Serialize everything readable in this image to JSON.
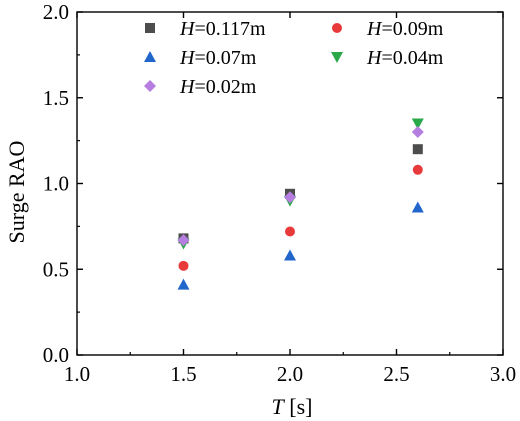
{
  "chart_data": {
    "type": "scatter",
    "xlabel_var": "T",
    "xlabel_unit": " [s]",
    "ylabel": "Surge RAO",
    "xlim": [
      1.0,
      3.0
    ],
    "ylim": [
      0.0,
      2.0
    ],
    "x_ticks": [
      "1.0",
      "1.5",
      "2.0",
      "2.5",
      "3.0"
    ],
    "y_ticks": [
      "0.0",
      "0.5",
      "1.0",
      "1.5",
      "2.0"
    ],
    "grid": false,
    "legend_placement": "top-left",
    "series": [
      {
        "var": "H",
        "value": "=0.117m",
        "marker": "square",
        "color": "#4d4d4d",
        "x": [
          1.5,
          2.0,
          2.6
        ],
        "y": [
          0.68,
          0.94,
          1.2
        ]
      },
      {
        "var": "H",
        "value": "=0.09m",
        "marker": "circle",
        "color": "#e8393b",
        "x": [
          1.5,
          2.0,
          2.6
        ],
        "y": [
          0.52,
          0.72,
          1.08
        ]
      },
      {
        "var": "H",
        "value": "=0.07m",
        "marker": "triangle-up",
        "color": "#2266cc",
        "x": [
          1.5,
          2.0,
          2.6
        ],
        "y": [
          0.41,
          0.58,
          0.86
        ]
      },
      {
        "var": "H",
        "value": "=0.04m",
        "marker": "triangle-down",
        "color": "#2aa84a",
        "x": [
          1.5,
          2.0,
          2.6
        ],
        "y": [
          0.65,
          0.9,
          1.35
        ]
      },
      {
        "var": "H",
        "value": "=0.02m",
        "marker": "diamond",
        "color": "#b57ee0",
        "x": [
          1.5,
          2.0,
          2.6
        ],
        "y": [
          0.67,
          0.92,
          1.3
        ]
      }
    ]
  }
}
